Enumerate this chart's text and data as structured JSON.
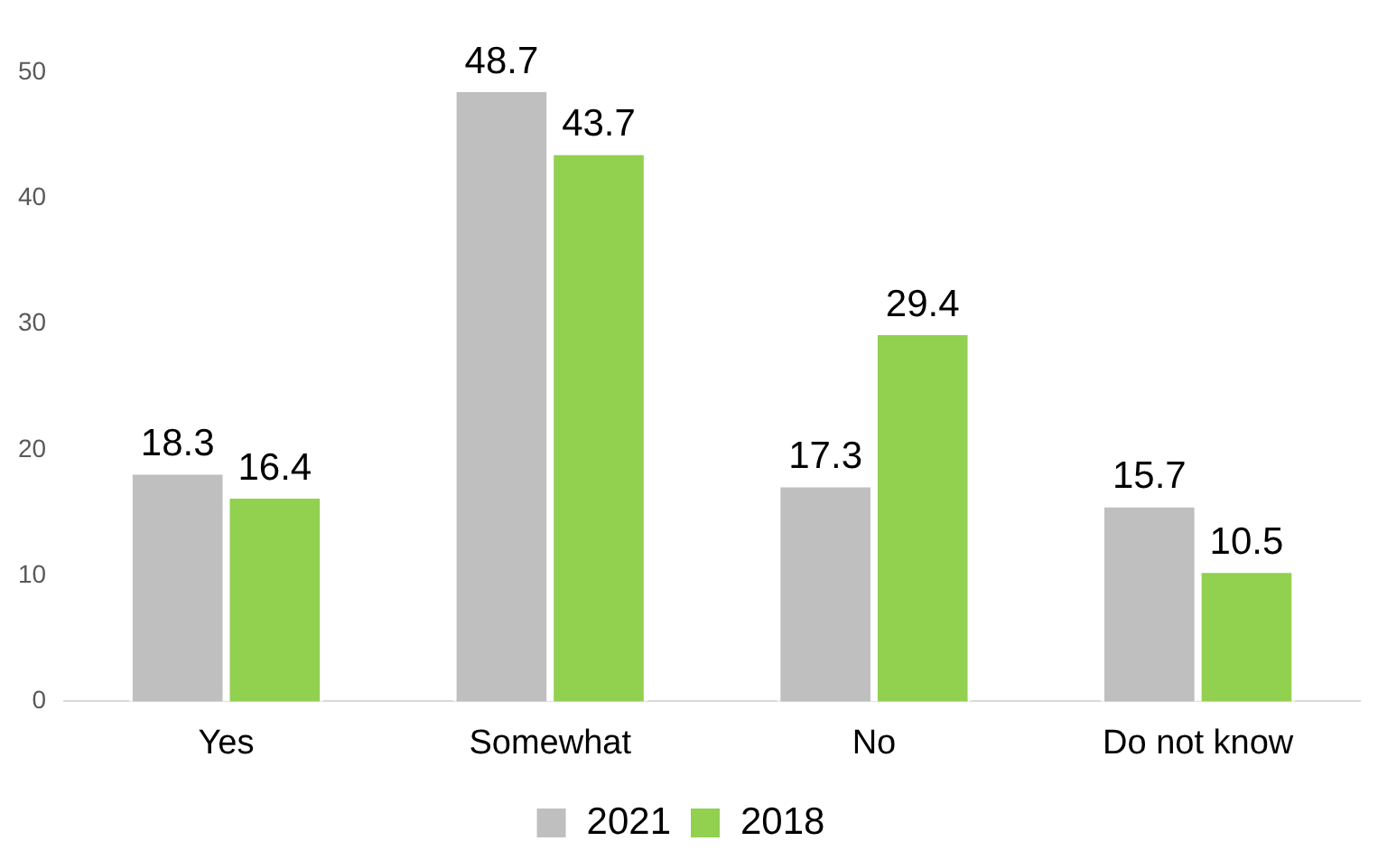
{
  "chart_data": {
    "type": "bar",
    "categories": [
      "Yes",
      "Somewhat",
      "No",
      "Do not know"
    ],
    "series": [
      {
        "name": "2021",
        "color": "#bfbfbf",
        "values": [
          18.3,
          48.7,
          17.3,
          15.7
        ]
      },
      {
        "name": "2018",
        "color": "#92d050",
        "values": [
          16.4,
          43.7,
          29.4,
          10.5
        ]
      }
    ],
    "ylim": [
      0,
      50
    ],
    "yticks": [
      0,
      10,
      20,
      30,
      40,
      50
    ],
    "grid": false,
    "legend": "bottom",
    "data_labels": true
  }
}
